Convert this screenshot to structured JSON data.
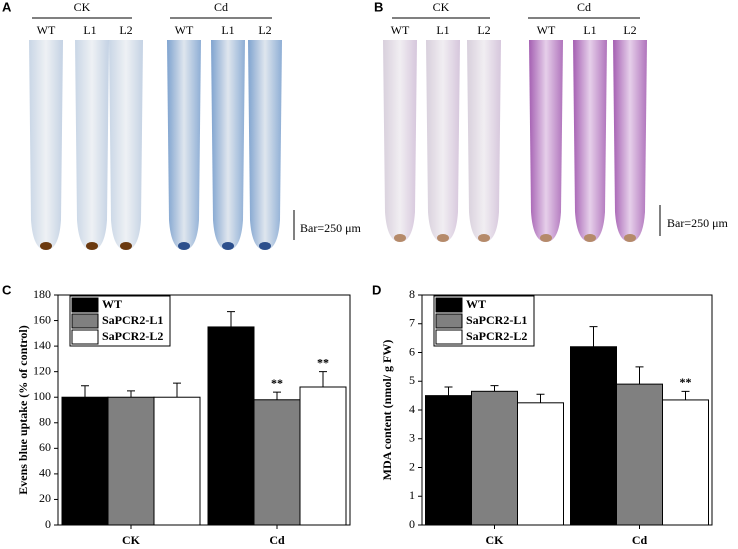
{
  "panels": {
    "A": {
      "letter": "A",
      "groups": [
        "CK",
        "Cd"
      ],
      "lines": [
        "WT",
        "L1",
        "L2",
        "WT",
        "L1",
        "L2"
      ],
      "scale": "Bar=250 μm"
    },
    "B": {
      "letter": "B",
      "groups": [
        "CK",
        "Cd"
      ],
      "lines": [
        "WT",
        "L1",
        "L2",
        "WT",
        "L1",
        "L2"
      ],
      "scale": "Bar=250 μm"
    },
    "C": {
      "letter": "C"
    },
    "D": {
      "letter": "D"
    }
  },
  "chart_data": [
    {
      "type": "bar",
      "y_label": "Evens blue uptake (% of control)",
      "categories": [
        "CK",
        "Cd"
      ],
      "series": [
        {
          "name": "WT",
          "color": "#000000",
          "values": [
            100,
            155
          ],
          "errors": [
            9,
            12
          ],
          "significance": [
            null,
            null
          ]
        },
        {
          "name": "SaPCR2-L1",
          "color": "#808080",
          "values": [
            100,
            98
          ],
          "errors": [
            5,
            6
          ],
          "significance": [
            null,
            "**"
          ]
        },
        {
          "name": "SaPCR2-L2",
          "color": "#ffffff",
          "values": [
            100,
            108
          ],
          "errors": [
            11,
            12
          ],
          "significance": [
            null,
            "**"
          ]
        }
      ],
      "ylim": [
        0,
        180
      ],
      "yticks": [
        0,
        20,
        40,
        60,
        80,
        100,
        120,
        140,
        160,
        180
      ],
      "legend": "top-left"
    },
    {
      "type": "bar",
      "y_label": "MDA content (nmol/ g FW)",
      "categories": [
        "CK",
        "Cd"
      ],
      "series": [
        {
          "name": "WT",
          "color": "#000000",
          "values": [
            4.5,
            6.2
          ],
          "errors": [
            0.3,
            0.7
          ],
          "significance": [
            null,
            null
          ]
        },
        {
          "name": "SaPCR2-L1",
          "color": "#808080",
          "values": [
            4.65,
            4.9
          ],
          "errors": [
            0.2,
            0.6
          ],
          "significance": [
            null,
            null
          ]
        },
        {
          "name": "SaPCR2-L2",
          "color": "#ffffff",
          "values": [
            4.25,
            4.35
          ],
          "errors": [
            0.3,
            0.3
          ],
          "significance": [
            null,
            "**"
          ]
        }
      ],
      "ylim": [
        0,
        8
      ],
      "yticks": [
        0,
        1,
        2,
        3,
        4,
        5,
        6,
        7,
        8
      ],
      "legend": "top-left"
    }
  ]
}
